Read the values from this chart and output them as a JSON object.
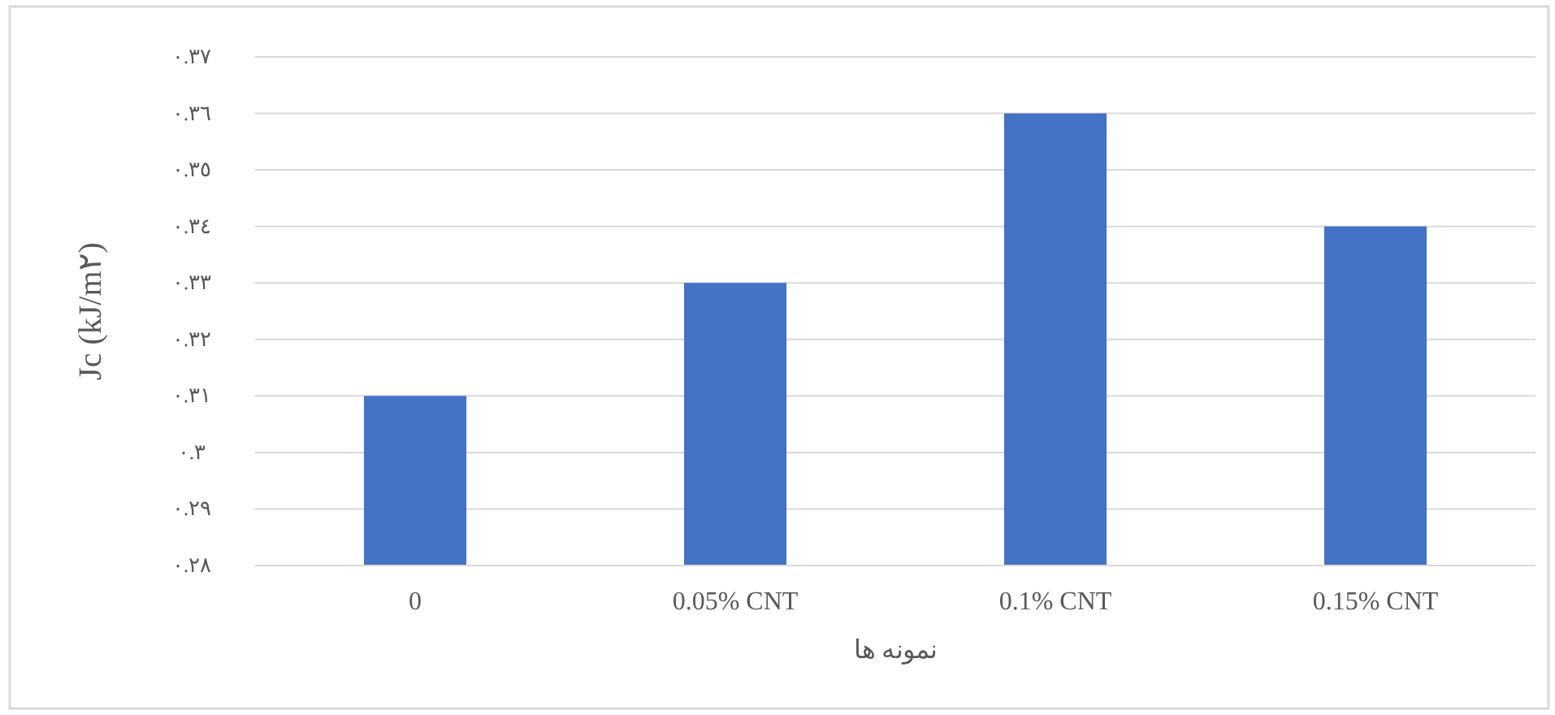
{
  "chart_data": {
    "type": "bar",
    "xlabel": "نمونه ها",
    "ylabel": "Jc (kJ/m٢)",
    "categories": [
      "0",
      "0.05% CNT",
      "0.1% CNT",
      "0.15% CNT"
    ],
    "values": [
      0.31,
      0.33,
      0.36,
      0.34
    ],
    "color": "#4472c4",
    "ylim": [
      0.28,
      0.37
    ],
    "yticks": [
      {
        "value": 0.28,
        "label": "٠.٢٨"
      },
      {
        "value": 0.29,
        "label": "٠.٢٩"
      },
      {
        "value": 0.3,
        "label": "٠.٣"
      },
      {
        "value": 0.31,
        "label": "٠.٣١"
      },
      {
        "value": 0.32,
        "label": "٠.٣٢"
      },
      {
        "value": 0.33,
        "label": "٠.٣٣"
      },
      {
        "value": 0.34,
        "label": "٠.٣٤"
      },
      {
        "value": 0.35,
        "label": "٠.٣٥"
      },
      {
        "value": 0.36,
        "label": "٠.٣٦"
      },
      {
        "value": 0.37,
        "label": "٠.٣٧"
      }
    ],
    "grid": "y"
  }
}
